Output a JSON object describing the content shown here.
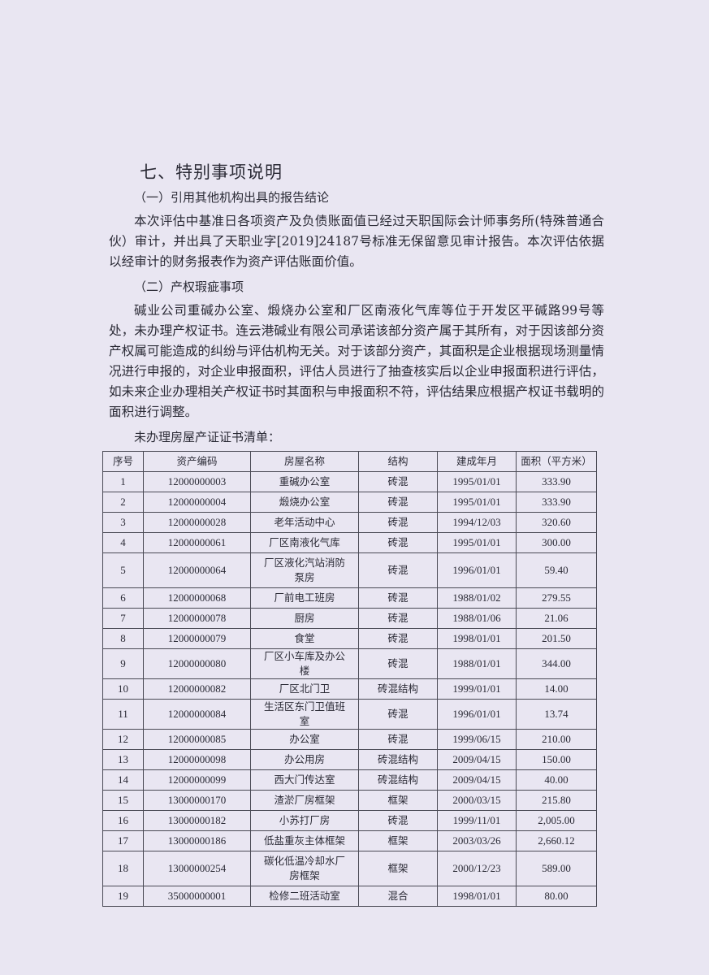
{
  "section_title": "七、特别事项说明",
  "subsection1": {
    "title": "（一）引用其他机构出具的报告结论",
    "paragraph": "本次评估中基准日各项资产及负债账面值已经过天职国际会计师事务所(特殊普通合伙）审计，并出具了天职业字[2019]24187号标准无保留意见审计报告。本次评估依据以经审计的财务报表作为资产评估账面价值。"
  },
  "subsection2": {
    "title": "（二）产权瑕疵事项",
    "paragraph": "碱业公司重碱办公室、煅烧办公室和厂区南液化气库等位于开发区平碱路99号等处，未办理产权证书。连云港碱业有限公司承诺该部分资产属于其所有，对于因该部分资产权属可能造成的纠纷与评估机构无关。对于该部分资产，其面积是企业根据现场测量情况进行申报的，对企业申报面积，评估人员进行了抽查核实后以企业申报面积进行评估，如未来企业办理相关产权证书时其面积与申报面积不符，评估结果应根据产权证书载明的面积进行调整。",
    "table_caption": "未办理房屋产证证书清单："
  },
  "table": {
    "headers": [
      "序号",
      "资产编码",
      "房屋名称",
      "结构",
      "建成年月",
      "面积（平方米）"
    ],
    "rows": [
      [
        "1",
        "12000000003",
        "重碱办公室",
        "砖混",
        "1995/01/01",
        "333.90"
      ],
      [
        "2",
        "12000000004",
        "煅烧办公室",
        "砖混",
        "1995/01/01",
        "333.90"
      ],
      [
        "3",
        "12000000028",
        "老年活动中心",
        "砖混",
        "1994/12/03",
        "320.60"
      ],
      [
        "4",
        "12000000061",
        "厂区南液化气库",
        "砖混",
        "1995/01/01",
        "300.00"
      ],
      [
        "5",
        "12000000064",
        "厂区液化汽站消防泵房",
        "砖混",
        "1996/01/01",
        "59.40"
      ],
      [
        "6",
        "12000000068",
        "厂前电工班房",
        "砖混",
        "1988/01/02",
        "279.55"
      ],
      [
        "7",
        "12000000078",
        "厨房",
        "砖混",
        "1988/01/06",
        "21.06"
      ],
      [
        "8",
        "12000000079",
        "食堂",
        "砖混",
        "1998/01/01",
        "201.50"
      ],
      [
        "9",
        "12000000080",
        "厂区小车库及办公楼",
        "砖混",
        "1988/01/01",
        "344.00"
      ],
      [
        "10",
        "12000000082",
        "厂区北门卫",
        "砖混结构",
        "1999/01/01",
        "14.00"
      ],
      [
        "11",
        "12000000084",
        "生活区东门卫值班室",
        "砖混",
        "1996/01/01",
        "13.74"
      ],
      [
        "12",
        "12000000085",
        "办公室",
        "砖混",
        "1999/06/15",
        "210.00"
      ],
      [
        "13",
        "12000000098",
        "办公用房",
        "砖混结构",
        "2009/04/15",
        "150.00"
      ],
      [
        "14",
        "12000000099",
        "西大门传达室",
        "砖混结构",
        "2009/04/15",
        "40.00"
      ],
      [
        "15",
        "13000000170",
        "渣淤厂房框架",
        "框架",
        "2000/03/15",
        "215.80"
      ],
      [
        "16",
        "13000000182",
        "小苏打厂房",
        "砖混",
        "1999/11/01",
        "2,005.00"
      ],
      [
        "17",
        "13000000186",
        "低盐重灰主体框架",
        "框架",
        "2003/03/26",
        "2,660.12"
      ],
      [
        "18",
        "13000000254",
        "碳化低温冷却水厂房框架",
        "框架",
        "2000/12/23",
        "589.00"
      ],
      [
        "19",
        "35000000001",
        "检修二班活动室",
        "混合",
        "1998/01/01",
        "80.00"
      ]
    ]
  }
}
